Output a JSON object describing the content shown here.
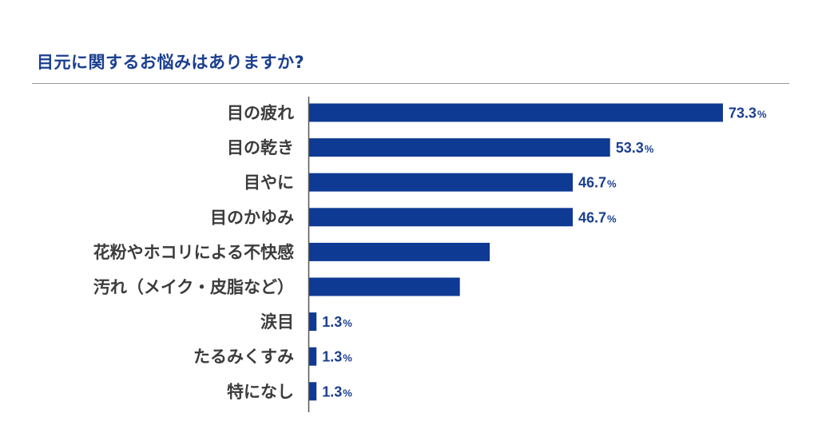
{
  "chart_data": {
    "type": "bar",
    "orientation": "horizontal",
    "title": "目元に関するお悩みはありますか?",
    "categories": [
      "目の疲れ",
      "目の乾き",
      "目やに",
      "目のかゆみ",
      "花粉やホコリによる不快感",
      "汚れ（メイク・皮脂など）",
      "涙目",
      "たるみくすみ",
      "特になし"
    ],
    "values": [
      73.3,
      53.3,
      46.7,
      46.7,
      32.0,
      26.7,
      1.3,
      1.3,
      1.3
    ],
    "value_labels": [
      "73.3",
      "53.3",
      "46.7",
      "46.7",
      "",
      "",
      "1.3",
      "1.3",
      "1.3"
    ],
    "unit": "%",
    "xlim": [
      0,
      100
    ],
    "grid": false,
    "legend": "none",
    "colors": {
      "bar": "#0f3a94",
      "title": "#1a3f8f",
      "label": "#3c3c3c",
      "axis": "#555555",
      "rule": "#9a9a9a"
    }
  }
}
